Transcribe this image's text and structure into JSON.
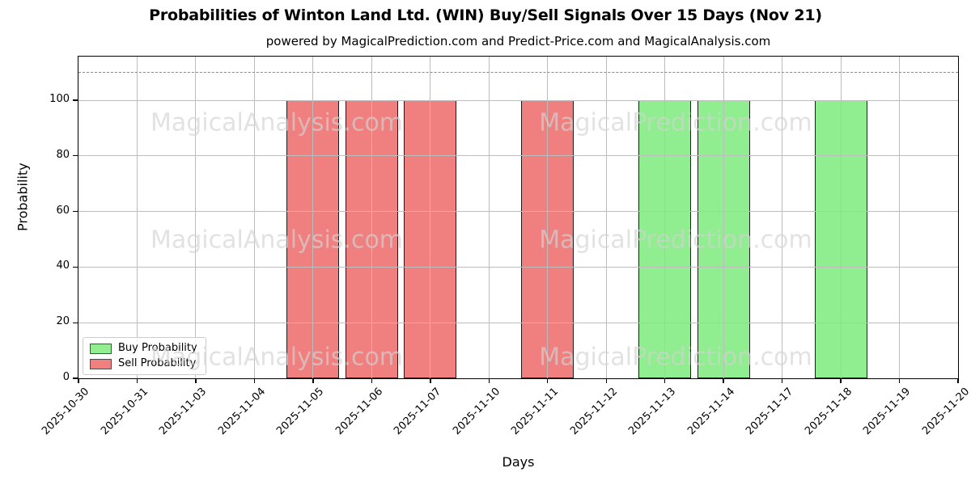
{
  "chart_data": {
    "type": "bar",
    "title": "Probabilities of Winton Land Ltd. (WIN) Buy/Sell Signals Over 15 Days (Nov 21)",
    "subtitle": "powered by MagicalPrediction.com and Predict-Price.com and MagicalAnalysis.com",
    "xlabel": "Days",
    "ylabel": "Probability",
    "categories": [
      "2025-10-30",
      "2025-10-31",
      "2025-11-03",
      "2025-11-04",
      "2025-11-05",
      "2025-11-06",
      "2025-11-07",
      "2025-11-10",
      "2025-11-11",
      "2025-11-12",
      "2025-11-13",
      "2025-11-14",
      "2025-11-17",
      "2025-11-18",
      "2025-11-19",
      "2025-11-20"
    ],
    "series": [
      {
        "name": "Buy Probability",
        "color": "#90ee90",
        "values": [
          0,
          0,
          0,
          0,
          0,
          0,
          0,
          0,
          0,
          0,
          100,
          100,
          0,
          100,
          0,
          0
        ]
      },
      {
        "name": "Sell Probability",
        "color": "#f08080",
        "values": [
          0,
          0,
          0,
          0,
          100,
          100,
          100,
          0,
          100,
          0,
          0,
          0,
          0,
          0,
          0,
          0
        ]
      }
    ],
    "yticks": [
      0,
      20,
      40,
      60,
      80,
      100
    ],
    "ylim": [
      0,
      115.7
    ],
    "threshold_line": {
      "y": 110,
      "style": "dashed",
      "color": "#8a8a8a"
    },
    "grid": true,
    "legend_position": "lower left",
    "watermarks": {
      "left_text": "MagicalAnalysis.com",
      "right_text": "MagicalPrediction.com",
      "rows": 3
    }
  },
  "colors": {
    "buy": "#90ee90",
    "sell": "#f08080",
    "bar_edge": "#1c1c1c",
    "grid": "#bdbdbd",
    "watermark": "#d3d3d3"
  }
}
